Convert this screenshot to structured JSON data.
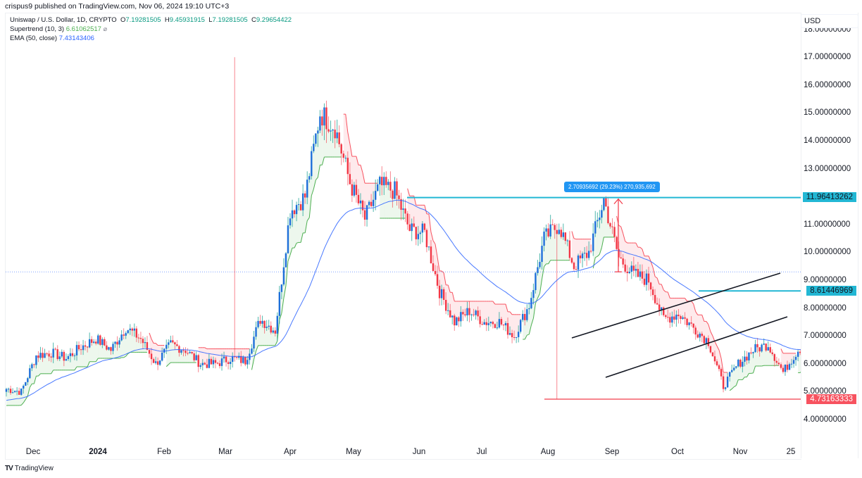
{
  "header": {
    "published": "crispus9 published on TradingView.com, Nov 06, 2024 19:10 UTC+3"
  },
  "legend": {
    "symbol": "Uniswap / U.S. Dollar, 1D, CRYPTO",
    "o_label": "O",
    "o": "7.19281505",
    "h_label": "H",
    "h": "9.45931915",
    "l_label": "L",
    "l": "7.19281505",
    "c_label": "C",
    "c": "9.29654422",
    "supertrend_label": "Supertrend (10, 3)",
    "supertrend_value": "6.61062517",
    "supertrend_icon": "⌀",
    "ema_label": "EMA (50, close)",
    "ema_value": "7.43143406"
  },
  "axis": {
    "currency": "USD",
    "price_ticks": [
      "18.00000000",
      "17.00000000",
      "16.00000000",
      "15.00000000",
      "14.00000000",
      "13.00000000",
      "12.00000000",
      "11.00000000",
      "10.00000000",
      "9.00000000",
      "8.00000000",
      "7.00000000",
      "6.00000000",
      "5.00000000",
      "4.00000000"
    ],
    "time_ticks": [
      "Dec",
      "2024",
      "Feb",
      "Mar",
      "Apr",
      "May",
      "Jun",
      "Jul",
      "Aug",
      "Sep",
      "Oct",
      "Nov",
      "25"
    ]
  },
  "price_labels": {
    "resistance": "11.96413262",
    "breakout": "8.61446969",
    "support": "4.73163333"
  },
  "measure": {
    "text": "2.70935692 (29.23%) 270,935,692"
  },
  "footer": {
    "brand": "TradingView",
    "logo": "TV"
  },
  "colors": {
    "up": "#1e6fd9",
    "up_wick": "#26a69a",
    "down": "#f23645",
    "ema": "#2962ff",
    "st_up": "#4caf50",
    "st_down": "#f7525f",
    "cyan": "#22b7d4",
    "support": "#f23645",
    "channel": "#131722",
    "measure": "#2196f3"
  },
  "chart_data": {
    "type": "candlestick",
    "title": "Uniswap / U.S. Dollar, 1D, CRYPTO",
    "xlabel": "",
    "ylabel": "USD",
    "ylim": [
      3.6,
      18.4
    ],
    "x_ticks": [
      "Dec",
      "2024",
      "Feb",
      "Mar",
      "Apr",
      "May",
      "Jun",
      "Jul",
      "Aug",
      "Sep",
      "Oct",
      "Nov",
      "25"
    ],
    "last_candle": {
      "open": 7.19281505,
      "high": 9.45931915,
      "low": 7.19281505,
      "close": 9.29654422
    },
    "indicators": {
      "supertrend_10_3": 6.61062517,
      "ema_50": 7.43143406
    },
    "close_path_weekly": [
      5.1,
      5.0,
      6.3,
      6.4,
      6.2,
      6.6,
      6.9,
      6.5,
      7.3,
      6.9,
      6.0,
      6.7,
      6.5,
      6.0,
      6.0,
      6.2,
      6.1,
      7.6,
      7.2,
      11.5,
      12.0,
      15.0,
      14.5,
      12.5,
      11.2,
      12.4,
      12.2,
      10.8,
      10.7,
      8.6,
      7.5,
      7.9,
      7.5,
      7.5,
      7.0,
      8.1,
      10.5,
      11.0,
      9.5,
      10.0,
      11.9,
      9.8,
      9.2,
      9.0,
      7.6,
      7.8,
      7.3,
      6.8,
      5.2,
      6.0,
      6.5,
      6.7,
      5.7,
      6.5,
      6.8,
      6.8,
      7.0,
      7.2,
      7.6,
      8.2,
      7.8,
      8.0,
      7.6,
      6.8,
      9.3
    ],
    "annotations": {
      "resistance": 11.96413262,
      "breakout_level": 8.61446969,
      "support": 4.73163333,
      "measure_delta": 2.70935692,
      "measure_pct": 29.23,
      "ascending_channel": {
        "upper": [
          [
            812,
            480
          ],
          [
            1108,
            388
          ]
        ],
        "lower": [
          [
            860,
            536
          ],
          [
            1118,
            450
          ]
        ]
      }
    }
  }
}
